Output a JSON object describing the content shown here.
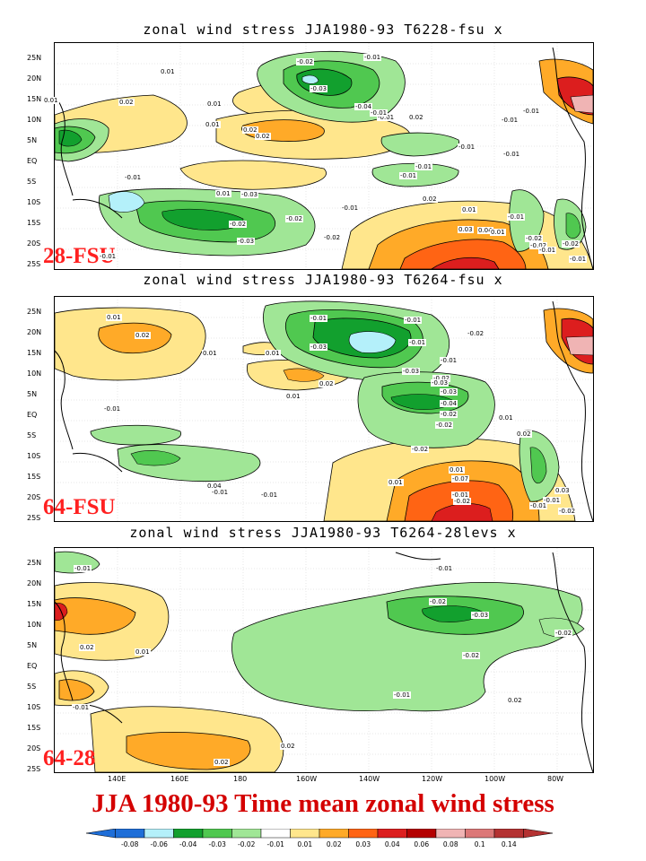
{
  "panels": [
    {
      "title": "zonal wind stress JJA1980-93 T6228-fsu x",
      "label": "28-FSU"
    },
    {
      "title": "zonal wind stress JJA1980-93 T6264-fsu x",
      "label": "64-FSU"
    },
    {
      "title": "zonal wind stress JJA1980-93 T6264-28levs x",
      "label": "64-28"
    }
  ],
  "latitudes": [
    "25N",
    "20N",
    "15N",
    "10N",
    "5N",
    "EQ",
    "5S",
    "10S",
    "15S",
    "20S",
    "25S"
  ],
  "longitudes": [
    "140E",
    "160E",
    "180",
    "160W",
    "140W",
    "120W",
    "100W",
    "80W"
  ],
  "main_title": "JJA 1980-93 Time mean zonal wind stress",
  "colorbar": {
    "labels": [
      "-0.08",
      "-0.06",
      "-0.04",
      "-0.03",
      "-0.02",
      "-0.01",
      "0.01",
      "0.02",
      "0.03",
      "0.04",
      "0.06",
      "0.08",
      "0.1",
      "0.14"
    ],
    "colors": [
      "#1e6ed8",
      "#b4f0fa",
      "#12a02e",
      "#50c850",
      "#a0e696",
      "#ffffff",
      "#ffe68c",
      "#ffaa28",
      "#ff6414",
      "#dc1e1e",
      "#b40000",
      "#f0b4b4",
      "#dc7878",
      "#b43232"
    ]
  },
  "contour_labels": [
    [
      "0.01",
      "-0.02",
      "-0.01",
      "0.01",
      "-0.03",
      "0.02",
      "0.01",
      "-0.04",
      "-0.01",
      "-0.01",
      "0.02",
      "-0.01",
      "0.01",
      "0.02",
      "-0.01",
      "-0.01",
      "-0.01",
      "0.02",
      "-0.01",
      "-0.01",
      "-0.01",
      "0.01",
      "-0.03",
      "-0.02",
      "-0.02",
      "-0.02",
      "-0.03",
      "0.01",
      "0.03",
      "0.04",
      "-0.02",
      "-0.02",
      "-0.01",
      "-0.02",
      "-0.01",
      "-0.01",
      "-0.01",
      "0.02",
      "0.01",
      "-0.01"
    ],
    [
      "0.01",
      "-0.01",
      "-0.01",
      "0.02",
      "-0.03",
      "-0.01",
      "0.01",
      "0.01",
      "-0.02",
      "-0.03",
      "-0.02",
      "-0.01",
      "0.02",
      "-0.03",
      "0.01",
      "-0.03",
      "-0.04",
      "-0.02",
      "-0.02",
      "0.01",
      "-0.02",
      "-0.01",
      "-0.01",
      "0.01",
      "-0.07",
      "-0.01",
      "-0.02",
      "0.01",
      "0.02",
      "0.03",
      "0.04",
      "-0.01",
      "-0.01",
      "-0.01",
      "-0.02"
    ],
    [
      "-0.01",
      "-0.02",
      "0.02",
      "-0.03",
      "-0.02",
      "0.01",
      "-0.02",
      "-0.01",
      "-0.01",
      "0.02",
      "-0.01",
      "0.02",
      "0.02"
    ]
  ]
}
